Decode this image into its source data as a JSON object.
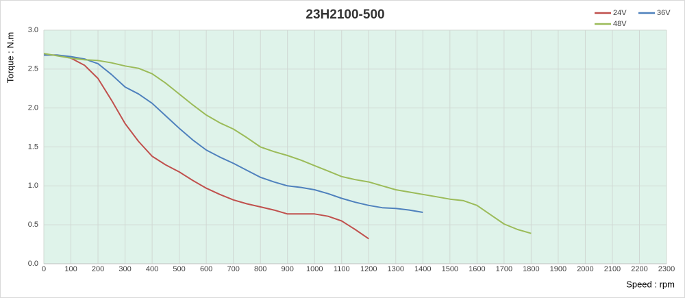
{
  "chart_data": {
    "type": "line",
    "title": "23H2100-500",
    "x_label": "Speed : rpm",
    "y_label": "Torque : N.m",
    "x": [
      0,
      50,
      100,
      150,
      200,
      250,
      300,
      350,
      400,
      450,
      500,
      550,
      600,
      650,
      700,
      750,
      800,
      850,
      900,
      950,
      1000,
      1050,
      1100,
      1150,
      1200,
      1250,
      1300,
      1350,
      1400,
      1450,
      1500,
      1550,
      1600,
      1650,
      1700,
      1750,
      1800
    ],
    "series": [
      {
        "name": "24V",
        "color": "#c0504d",
        "values": [
          2.68,
          2.68,
          2.64,
          2.55,
          2.38,
          2.1,
          1.8,
          1.57,
          1.38,
          1.27,
          1.18,
          1.07,
          0.97,
          0.89,
          0.82,
          0.77,
          0.73,
          0.69,
          0.64,
          0.64,
          0.64,
          0.61,
          0.55,
          0.44,
          0.32,
          null,
          null,
          null,
          null,
          null,
          null,
          null,
          null,
          null,
          null,
          null,
          null
        ]
      },
      {
        "name": "36V",
        "color": "#4f81bd",
        "values": [
          2.68,
          2.68,
          2.66,
          2.63,
          2.57,
          2.43,
          2.27,
          2.18,
          2.06,
          1.9,
          1.74,
          1.59,
          1.46,
          1.37,
          1.29,
          1.2,
          1.11,
          1.05,
          1.0,
          0.98,
          0.95,
          0.9,
          0.84,
          0.79,
          0.75,
          0.72,
          0.71,
          0.69,
          0.66,
          null,
          null,
          null,
          null,
          null,
          null,
          null,
          null
        ]
      },
      {
        "name": "48V",
        "color": "#9bbb59",
        "values": [
          2.7,
          2.67,
          2.64,
          2.62,
          2.61,
          2.58,
          2.54,
          2.51,
          2.44,
          2.32,
          2.18,
          2.04,
          1.91,
          1.81,
          1.73,
          1.62,
          1.5,
          1.44,
          1.39,
          1.33,
          1.26,
          1.19,
          1.12,
          1.08,
          1.05,
          1.0,
          0.95,
          0.92,
          0.89,
          0.86,
          0.83,
          0.81,
          0.75,
          0.63,
          0.51,
          0.44,
          0.39
        ]
      }
    ],
    "xlim": [
      0,
      2300
    ],
    "xticks": [
      0,
      100,
      200,
      300,
      400,
      500,
      600,
      700,
      800,
      900,
      1000,
      1100,
      1200,
      1300,
      1400,
      1500,
      1600,
      1700,
      1800,
      1900,
      2000,
      2100,
      2200,
      2300
    ],
    "ylim": [
      0,
      3
    ],
    "yticks": [
      {
        "value": 0,
        "label": "0.0"
      },
      0.5,
      {
        "value": 1,
        "label": "1.0"
      },
      1.5,
      {
        "value": 2,
        "label": "2.0"
      },
      2.5,
      {
        "value": 3,
        "label": "3.0"
      }
    ],
    "grid": true,
    "legend": "top-right"
  }
}
